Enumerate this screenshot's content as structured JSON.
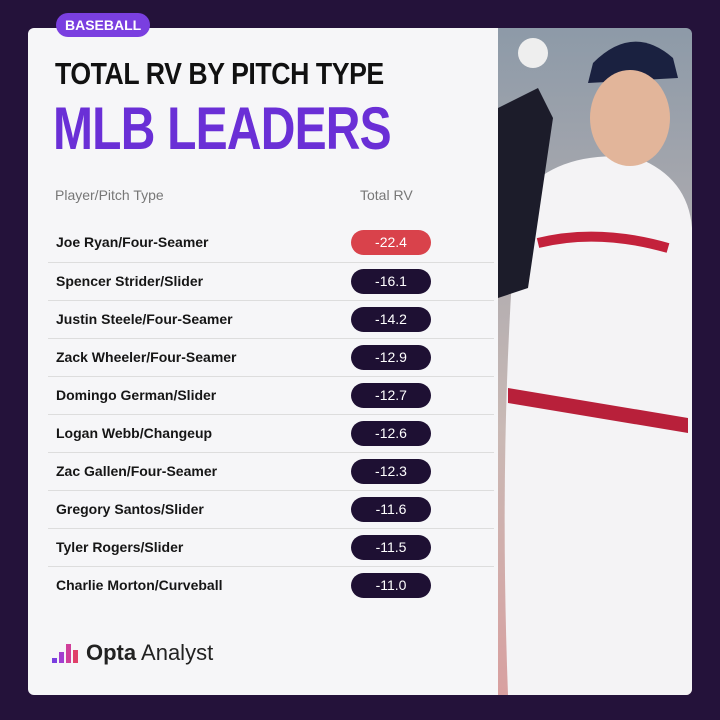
{
  "badge": "BASEBALL",
  "header": {
    "title": "TOTAL RV BY PITCH TYPE",
    "subtitle": "MLB LEADERS"
  },
  "table": {
    "columns": [
      "Player/Pitch Type",
      "Total RV"
    ],
    "rows": [
      [
        "Joe Ryan/Four-Seamer",
        "-22.4"
      ],
      [
        "Spencer Strider/Slider",
        "-16.1"
      ],
      [
        "Justin Steele/Four-Seamer",
        "-14.2"
      ],
      [
        "Zack Wheeler/Four-Seamer",
        "-12.9"
      ],
      [
        "Domingo German/Slider",
        "-12.7"
      ],
      [
        "Logan Webb/Changeup",
        "-12.6"
      ],
      [
        "Zac Gallen/Four-Seamer",
        "-12.3"
      ],
      [
        "Gregory Santos/Slider",
        "-11.6"
      ],
      [
        "Tyler Rogers/Slider",
        "-11.5"
      ],
      [
        "Charlie Morton/Curveball",
        "-11.0"
      ]
    ]
  },
  "logo": {
    "brand": "Opta",
    "product": "Analyst"
  }
}
